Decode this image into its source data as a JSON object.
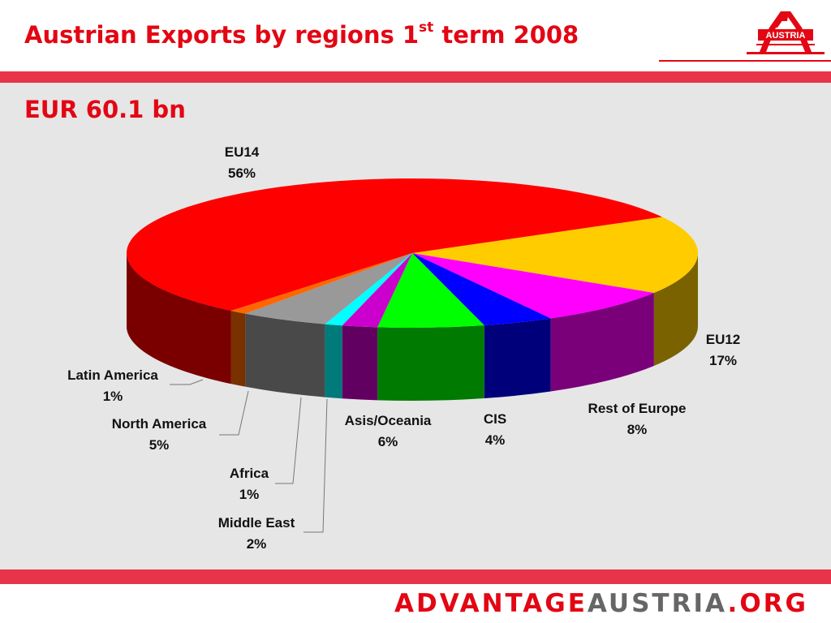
{
  "header": {
    "title": "Austrian Exports by regions  1",
    "title_sup": "st",
    "title_suffix": " term 2008",
    "logo_text": "AUSTRIA"
  },
  "subtitle": "EUR 60.1 bn",
  "chart_data": {
    "type": "pie",
    "title": "",
    "slices": [
      {
        "label": "EU14",
        "value": 56,
        "pct": "56%",
        "color": "#ff0000"
      },
      {
        "label": "EU12",
        "value": 17,
        "pct": "17%",
        "color": "#ffcc00"
      },
      {
        "label": "Rest of Europe",
        "value": 8,
        "pct": "8%",
        "color": "#ff00ff"
      },
      {
        "label": "CIS",
        "value": 4,
        "pct": "4%",
        "color": "#0000ff"
      },
      {
        "label": "Asis/Oceania",
        "value": 6,
        "pct": "6%",
        "color": "#00ff00"
      },
      {
        "label": "Middle East",
        "value": 2,
        "pct": "2%",
        "color": "#cc00cc"
      },
      {
        "label": "Africa",
        "value": 1,
        "pct": "1%",
        "color": "#00ffff"
      },
      {
        "label": "North America",
        "value": 5,
        "pct": "5%",
        "color": "#999999"
      },
      {
        "label": "Latin America",
        "value": 1,
        "pct": "1%",
        "color": "#ff6600"
      }
    ]
  },
  "footer": {
    "part1": "ADVANTAGE",
    "part2": "AUSTRIA",
    "part3": ".ORG"
  }
}
